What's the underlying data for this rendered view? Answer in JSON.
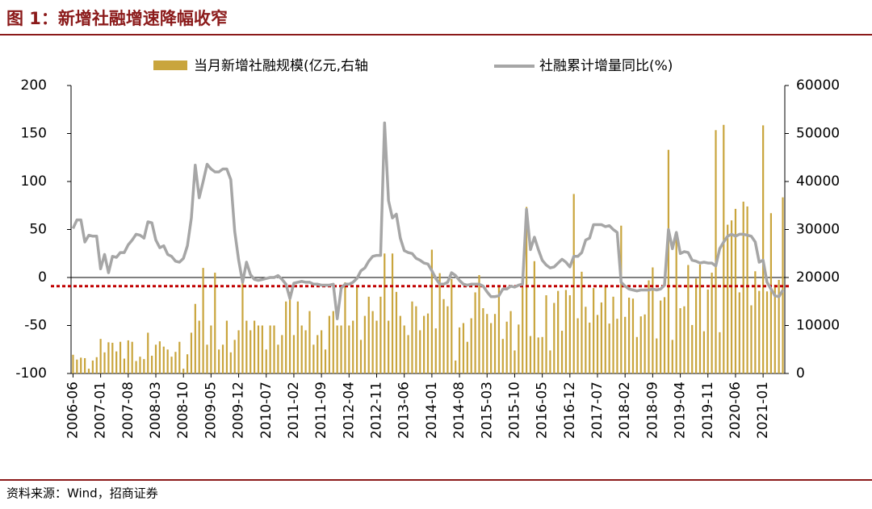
{
  "title": "图 1：新增社融增速降幅收窄",
  "source": "资料来源：Wind，招商证券",
  "chart_data": {
    "type": "bar-line",
    "categories": [
      "2006-06",
      null,
      null,
      null,
      null,
      null,
      null,
      "2007-01",
      null,
      null,
      null,
      null,
      null,
      null,
      "2007-08",
      null,
      null,
      null,
      null,
      null,
      null,
      "2008-03",
      null,
      null,
      null,
      null,
      null,
      null,
      "2008-10",
      null,
      null,
      null,
      null,
      null,
      null,
      "2009-05",
      null,
      null,
      null,
      null,
      null,
      null,
      "2009-12",
      null,
      null,
      null,
      null,
      null,
      null,
      "2010-07",
      null,
      null,
      null,
      null,
      null,
      null,
      "2011-02",
      null,
      null,
      null,
      null,
      null,
      null,
      "2011-09",
      null,
      null,
      null,
      null,
      null,
      null,
      "2012-04",
      null,
      null,
      null,
      null,
      null,
      null,
      "2012-11",
      null,
      null,
      null,
      null,
      null,
      null,
      "2013-06",
      null,
      null,
      null,
      null,
      null,
      null,
      "2014-01",
      null,
      null,
      null,
      null,
      null,
      null,
      "2014-08",
      null,
      null,
      null,
      null,
      null,
      null,
      "2015-03",
      null,
      null,
      null,
      null,
      null,
      null,
      "2015-10",
      null,
      null,
      null,
      null,
      null,
      null,
      "2016-05",
      null,
      null,
      null,
      null,
      null,
      null,
      "2016-12",
      null,
      null,
      null,
      null,
      null,
      null,
      "2017-07",
      null,
      null,
      null,
      null,
      null,
      null,
      "2018-02",
      null,
      null,
      null,
      null,
      null,
      null,
      "2018-09",
      null,
      null,
      null,
      null,
      null,
      null,
      "2019-04",
      null,
      null,
      null,
      null,
      null,
      null,
      "2019-11",
      null,
      null,
      null,
      null,
      null,
      null,
      "2020-06",
      null,
      null,
      null,
      null,
      null,
      null,
      "2021-01",
      null,
      null,
      null,
      null,
      null
    ],
    "series": [
      {
        "name": "当月新增社融规模(亿元,右轴",
        "kind": "bar",
        "axis": "y2",
        "color": "#c9a53d",
        "values": [
          3900,
          2900,
          3300,
          3200,
          1000,
          2700,
          3400,
          7200,
          4400,
          6500,
          6400,
          4600,
          6600,
          3100,
          6900,
          6600,
          2600,
          3500,
          3000,
          8500,
          3700,
          6000,
          6700,
          5600,
          5000,
          3500,
          4500,
          6600,
          1000,
          4000,
          8500,
          14500,
          11000,
          22000,
          6000,
          10000,
          21000,
          5000,
          6000,
          11000,
          4400,
          7000,
          9000,
          20700,
          11000,
          9000,
          11000,
          10000,
          10000,
          5000,
          10000,
          10000,
          6000,
          8000,
          15000,
          17000,
          8000,
          15000,
          10000,
          9000,
          13000,
          6000,
          8000,
          9000,
          5000,
          12000,
          13000,
          10000,
          10000,
          19000,
          10000,
          11000,
          18000,
          7000,
          12000,
          16000,
          13000,
          11000,
          16000,
          25000,
          11000,
          25000,
          17000,
          12000,
          10000,
          8000,
          15000,
          14000,
          9000,
          12000,
          12500,
          25800,
          9400,
          20900,
          15500,
          14000,
          19700,
          2700,
          9600,
          10500,
          6600,
          11500,
          16900,
          20500,
          13600,
          12400,
          10500,
          12400,
          18300,
          7200,
          10800,
          13000,
          4800,
          10200,
          18000,
          34700,
          7800,
          23400,
          7500,
          7600,
          16300,
          4800,
          14700,
          17200,
          8900,
          17400,
          16300,
          37400,
          11500,
          21200,
          13900,
          10600,
          17800,
          12200,
          14800,
          18200,
          10400,
          16000,
          11400,
          30800,
          11800,
          15800,
          15600,
          7600,
          11900,
          12300,
          19400,
          22100,
          7300,
          15200,
          15900,
          46600,
          7000,
          28600,
          13600,
          14000,
          22600,
          10100,
          19800,
          22700,
          8800,
          17500,
          21000,
          50700,
          8600,
          51800,
          31000,
          31900,
          34300,
          16900,
          35800,
          34800,
          14200,
          21300,
          17200,
          51700,
          17100,
          33400,
          18500,
          19500,
          36700
        ]
      },
      {
        "name": "社融累计增量同比(%)",
        "kind": "line",
        "axis": "y",
        "color": "#a6a6a6",
        "values": [
          51,
          60,
          60,
          37,
          44,
          43,
          43,
          9,
          24,
          5,
          22,
          21,
          26,
          26,
          34,
          39,
          45,
          44,
          41,
          58,
          57,
          39,
          31,
          33,
          24,
          22,
          17,
          16,
          20,
          33,
          62,
          117,
          83,
          100,
          118,
          113,
          110,
          110,
          113,
          113,
          102,
          48,
          18,
          -5,
          16,
          3,
          -2,
          -3,
          -2,
          -1,
          0,
          0,
          2,
          -2,
          -7,
          -22,
          -6,
          -5,
          -4,
          -5,
          -5,
          -7,
          -7,
          -8,
          -8,
          -8,
          -7,
          -43,
          -11,
          -7,
          -7,
          -5,
          -1,
          7,
          10,
          17,
          22,
          23,
          23,
          161,
          80,
          62,
          66,
          41,
          28,
          26,
          25,
          20,
          18,
          15,
          14,
          7,
          -1,
          -7,
          -7,
          -5,
          5,
          2,
          -3,
          -7,
          -8,
          -7,
          -7,
          -7,
          -9,
          -15,
          -20,
          -20,
          -19,
          -12,
          -12,
          -9,
          -10,
          -8,
          -7,
          71,
          29,
          42,
          29,
          18,
          13,
          10,
          11,
          15,
          19,
          16,
          11,
          22,
          22,
          26,
          39,
          41,
          55,
          55,
          55,
          53,
          54,
          50,
          47,
          -5,
          -9,
          -12,
          -13,
          -14,
          -13,
          -13,
          -13,
          -12,
          -13,
          -12,
          -8,
          50,
          30,
          47,
          25,
          27,
          26,
          18,
          17,
          15,
          16,
          15,
          15,
          12,
          30,
          37,
          43,
          45,
          43,
          45,
          45,
          44,
          43,
          37,
          16,
          18,
          -5,
          -12,
          -19,
          -20,
          -13
        ]
      }
    ],
    "ylim": [
      -100,
      200
    ],
    "yticks": [
      -100,
      -50,
      0,
      50,
      100,
      150,
      200
    ],
    "y2lim": [
      0,
      60000
    ],
    "y2ticks": [
      0,
      10000,
      20000,
      30000,
      40000,
      50000,
      60000
    ],
    "reference_line": {
      "value": -9,
      "color": "#c00000"
    }
  }
}
